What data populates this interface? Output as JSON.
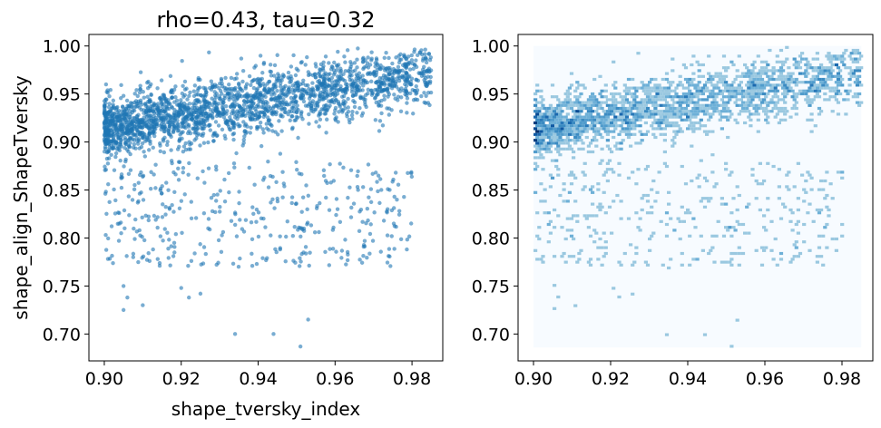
{
  "chart_data": [
    {
      "type": "scatter",
      "title": "rho=0.43, tau=0.32",
      "xlabel": "shape_tversky_index",
      "ylabel": "shape_align_ShapeTversky",
      "xlim": [
        0.896,
        0.988
      ],
      "ylim": [
        0.672,
        1.012
      ],
      "xticks": [
        "0.90",
        "0.92",
        "0.94",
        "0.96",
        "0.98"
      ],
      "yticks": [
        "0.70",
        "0.75",
        "0.80",
        "0.85",
        "0.90",
        "0.95",
        "1.00"
      ],
      "marker_color": "#1f77b4",
      "marker_alpha": 0.6,
      "grid": false,
      "point_count": 2600,
      "distribution": {
        "main_trend": {
          "x_range": [
            0.9,
            0.985
          ],
          "y_at_xmin": 0.915,
          "y_at_xmax": 0.972,
          "spread": 0.016
        },
        "lower_cloud": {
          "x_range": [
            0.9,
            0.98
          ],
          "y_range": [
            0.77,
            0.88
          ]
        },
        "outliers": [
          [
            0.905,
            0.725
          ],
          [
            0.91,
            0.73
          ],
          [
            0.906,
            0.738
          ],
          [
            0.922,
            0.738
          ],
          [
            0.934,
            0.7
          ],
          [
            0.944,
            0.7
          ],
          [
            0.951,
            0.687
          ],
          [
            0.953,
            0.715
          ],
          [
            0.905,
            0.75
          ],
          [
            0.92,
            0.748
          ],
          [
            0.925,
            0.742
          ]
        ]
      }
    },
    {
      "type": "heatmap",
      "subtype": "hexbin",
      "title": "",
      "xlabel": "",
      "ylabel": "",
      "xlim": [
        0.896,
        0.988
      ],
      "ylim": [
        0.672,
        1.012
      ],
      "xticks": [
        "0.90",
        "0.92",
        "0.94",
        "0.96",
        "0.98"
      ],
      "yticks": [
        "0.70",
        "0.75",
        "0.80",
        "0.85",
        "0.90",
        "0.95",
        "1.00"
      ],
      "colormap": "Blues",
      "background_color": "#f7fbff",
      "extent": {
        "x": [
          0.9,
          0.985
        ],
        "y": [
          0.686,
          1.0
        ]
      }
    }
  ]
}
